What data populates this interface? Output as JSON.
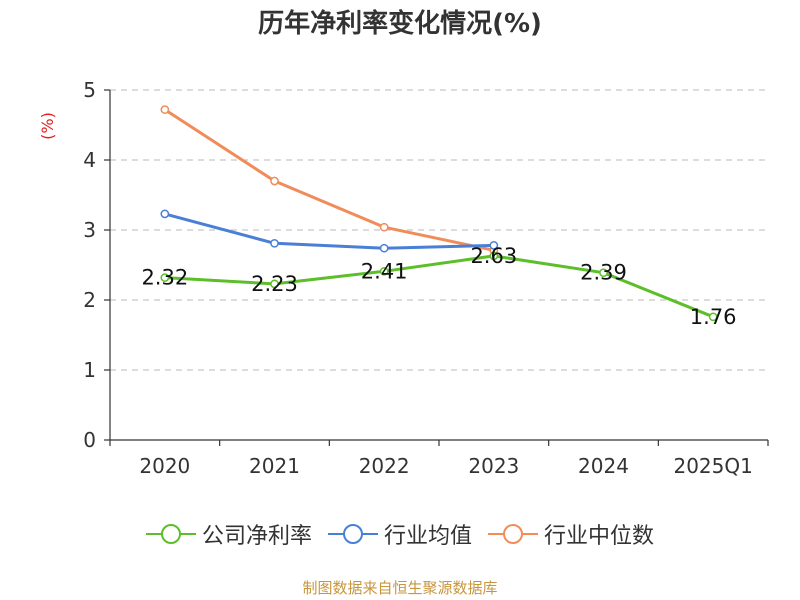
{
  "title": "历年净利率变化情况(%)",
  "footer": "制图数据来自恒生聚源数据库",
  "colors": {
    "company": "#5cbf2a",
    "industry_avg": "#4a7fd6",
    "industry_median": "#f18c5a",
    "ylabel": "#e02020"
  },
  "chart_data": {
    "type": "line",
    "title": "历年净利率变化情况(%)",
    "xlabel": "",
    "ylabel": "(%)",
    "categories": [
      "2020",
      "2021",
      "2022",
      "2023",
      "2024",
      "2025Q1"
    ],
    "ylim": [
      0,
      5
    ],
    "yticks": [
      "0",
      "1",
      "2",
      "3",
      "4",
      "5"
    ],
    "grid": true,
    "legend_position": "bottom",
    "series": [
      {
        "name": "公司净利率",
        "color_key": "company",
        "values": [
          2.32,
          2.23,
          2.41,
          2.63,
          2.39,
          1.76
        ],
        "labels": [
          "2.32",
          "2.23",
          "2.41",
          "2.63",
          "2.39",
          "1.76"
        ]
      },
      {
        "name": "行业均值",
        "color_key": "industry_avg",
        "values": [
          3.23,
          2.81,
          2.74,
          2.78,
          null,
          null
        ]
      },
      {
        "name": "行业中位数",
        "color_key": "industry_median",
        "values": [
          4.72,
          3.7,
          3.04,
          2.71,
          null,
          null
        ]
      }
    ]
  }
}
